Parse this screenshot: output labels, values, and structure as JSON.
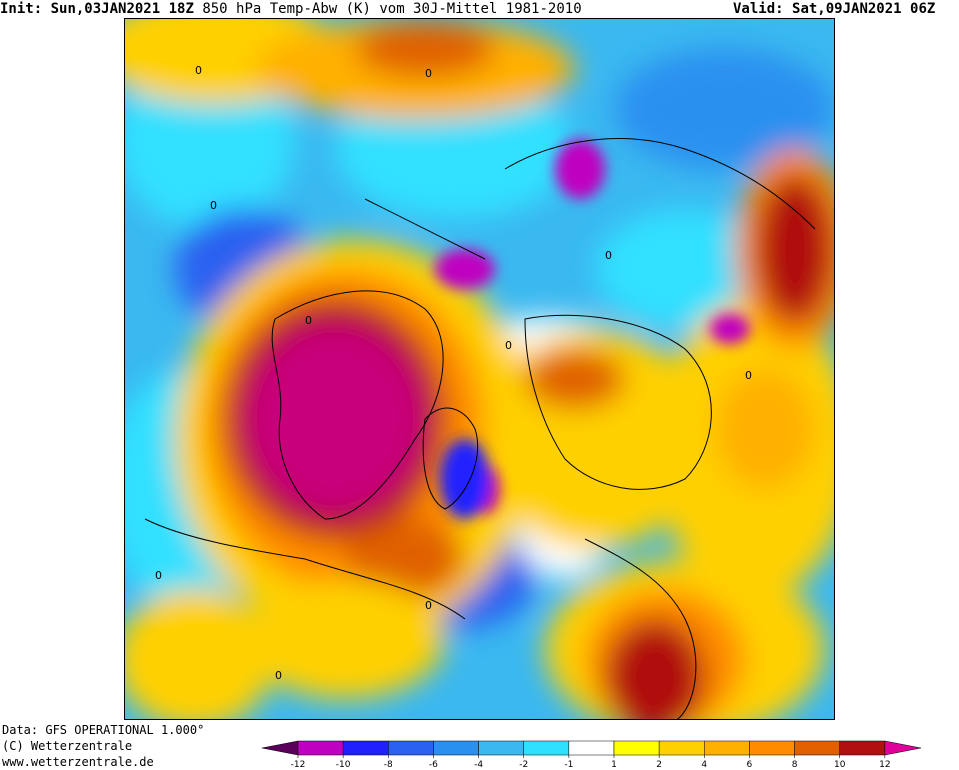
{
  "header": {
    "init_label": "Init:",
    "init_value": "Sun,03JAN2021 18Z",
    "title": "850 hPa Temp-Abw (K) vom 30J-Mittel 1981-2010",
    "valid_label": "Valid:",
    "valid_value": "Sat,09JAN2021 06Z"
  },
  "footer": {
    "data_source": "Data: GFS OPERATIONAL 1.000°",
    "copyright": "(C) Wetterzentrale",
    "website": "www.wetterzentrale.de"
  },
  "contour_label": "0",
  "legend": {
    "colors": [
      "#5a005a",
      "#c000c0",
      "#2020ff",
      "#2a60f0",
      "#2a90f0",
      "#3ab8f0",
      "#30e0ff",
      "#ffffff",
      "#ffff00",
      "#ffd000",
      "#ffb000",
      "#ff8c00",
      "#e06000",
      "#b01010",
      "#e0009a"
    ],
    "ticks": [
      "-12",
      "-10",
      "-8",
      "-6",
      "-4",
      "-2",
      "-1",
      "1",
      "2",
      "4",
      "6",
      "8",
      "10",
      "12"
    ]
  }
}
